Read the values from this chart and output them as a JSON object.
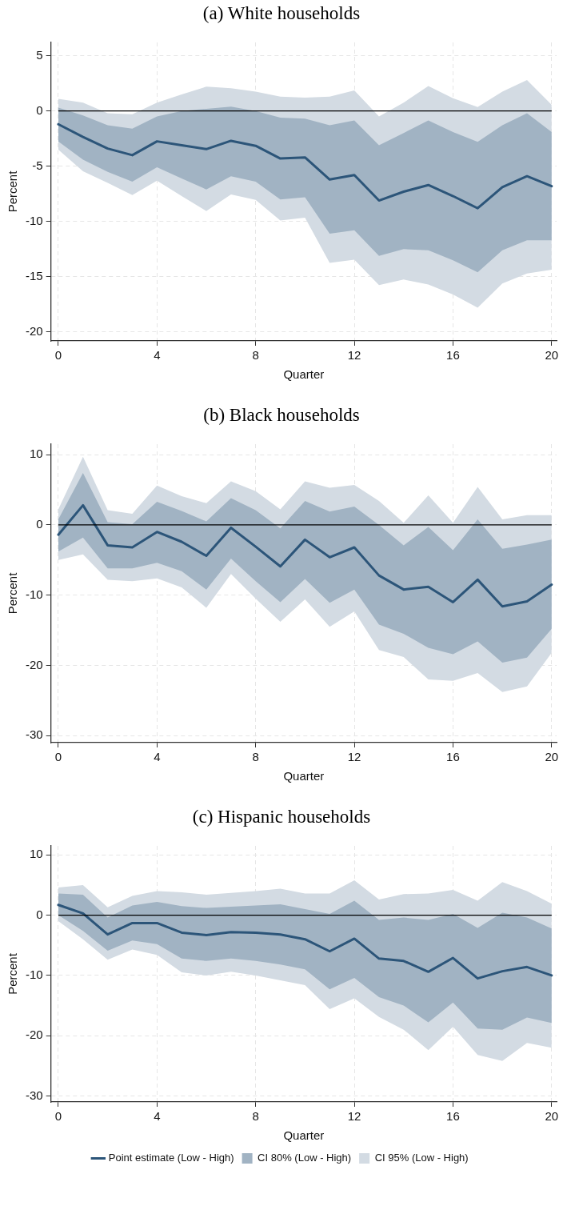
{
  "chart_data": [
    {
      "type": "line",
      "title": "(a) White households",
      "xlabel": "Quarter",
      "ylabel": "Percent",
      "x": [
        0,
        1,
        2,
        3,
        4,
        5,
        6,
        7,
        8,
        9,
        10,
        11,
        12,
        13,
        14,
        15,
        16,
        17,
        18,
        19,
        20
      ],
      "xlim": [
        -0.3,
        20.2
      ],
      "ylim": [
        -20.8,
        6.2
      ],
      "xticks": [
        0,
        4,
        8,
        12,
        16,
        20
      ],
      "yticks": [
        -20,
        -15,
        -10,
        -5,
        0,
        5
      ],
      "grid": true,
      "legend": false,
      "marker": "none",
      "line_style": "solid",
      "ref_lines": [
        {
          "axis": "y",
          "value": 0,
          "color": "#000000"
        }
      ],
      "series": [
        {
          "color": "#2c5579",
          "values": [
            -1.2,
            -2.35,
            -3.4,
            -4.0,
            -2.75,
            -3.1,
            -3.45,
            -2.7,
            -3.15,
            -4.3,
            -4.2,
            -6.2,
            -5.8,
            -8.1,
            -7.3,
            -6.7,
            -7.7,
            -8.8,
            -6.9,
            -5.9,
            -6.8
          ]
        },
        {
          "color": "#a1b3c3",
          "values": [
            null,
            null,
            null,
            null,
            null,
            null,
            null,
            null,
            null,
            null,
            null,
            null,
            null,
            null,
            null,
            null,
            null,
            null,
            null,
            null,
            null
          ],
          "lower": [
            -2.75,
            -4.4,
            -5.5,
            -6.4,
            -5.1,
            -6.1,
            -7.1,
            -5.9,
            -6.4,
            -8.0,
            -7.8,
            -11.1,
            -10.8,
            -13.1,
            -12.5,
            -12.6,
            -13.5,
            -14.6,
            -12.6,
            -11.7,
            -11.7
          ],
          "upper": [
            0.3,
            -0.4,
            -1.3,
            -1.6,
            -0.5,
            0,
            0.2,
            0.4,
            0,
            -0.6,
            -0.7,
            -1.3,
            -0.85,
            -3.1,
            -2.0,
            -0.85,
            -1.9,
            -2.8,
            -1.3,
            -0.2,
            -1.9
          ]
        },
        {
          "color": "#d3dbe3",
          "values": [
            null,
            null,
            null,
            null,
            null,
            null,
            null,
            null,
            null,
            null,
            null,
            null,
            null,
            null,
            null,
            null,
            null,
            null,
            null,
            null,
            null
          ],
          "lower": [
            -3.5,
            -5.45,
            -6.5,
            -7.6,
            -6.3,
            -7.7,
            -9.05,
            -7.55,
            -8.05,
            -9.9,
            -9.65,
            -13.75,
            -13.45,
            -15.75,
            -15.25,
            -15.7,
            -16.6,
            -17.8,
            -15.6,
            -14.7,
            -14.35
          ],
          "upper": [
            1.1,
            0.75,
            -0.2,
            -0.3,
            0.75,
            1.5,
            2.2,
            2.05,
            1.75,
            1.3,
            1.2,
            1.3,
            1.85,
            -0.5,
            0.75,
            2.25,
            1.15,
            0.35,
            1.75,
            2.8,
            0.55
          ]
        }
      ]
    },
    {
      "type": "line",
      "title": "(b) Black households",
      "xlabel": "Quarter",
      "ylabel": "Percent",
      "x": [
        0,
        1,
        2,
        3,
        4,
        5,
        6,
        7,
        8,
        9,
        10,
        11,
        12,
        13,
        14,
        15,
        16,
        17,
        18,
        19,
        20
      ],
      "xlim": [
        -0.3,
        20.2
      ],
      "ylim": [
        -31,
        11.5
      ],
      "xticks": [
        0,
        4,
        8,
        12,
        16,
        20
      ],
      "yticks": [
        -30,
        -20,
        -10,
        0,
        10
      ],
      "grid": true,
      "legend": false,
      "marker": "none",
      "line_style": "solid",
      "ref_lines": [
        {
          "axis": "y",
          "value": 0,
          "color": "#000000"
        }
      ],
      "series": [
        {
          "color": "#2c5579",
          "values": [
            -1.4,
            2.8,
            -2.9,
            -3.2,
            -1.0,
            -2.4,
            -4.4,
            -0.4,
            -3.1,
            -5.9,
            -2.1,
            -4.6,
            -3.2,
            -7.2,
            -9.2,
            -8.8,
            -11.0,
            -7.8,
            -11.6,
            -10.9,
            -8.5
          ]
        },
        {
          "color": "#a1b3c3",
          "values": [
            null,
            null,
            null,
            null,
            null,
            null,
            null,
            null,
            null,
            null,
            null,
            null,
            null,
            null,
            null,
            null,
            null,
            null,
            null,
            null,
            null
          ],
          "lower": [
            -3.8,
            -1.8,
            -6.2,
            -6.2,
            -5.4,
            -6.6,
            -9.2,
            -4.8,
            -8.0,
            -11.0,
            -7.7,
            -11.1,
            -9.2,
            -14.2,
            -15.5,
            -17.5,
            -18.4,
            -16.6,
            -19.6,
            -18.9,
            -14.8
          ],
          "upper": [
            0.8,
            7.4,
            0.4,
            0.1,
            3.3,
            2.0,
            0.5,
            3.8,
            2.1,
            -0.5,
            3.4,
            1.9,
            2.6,
            0,
            -2.9,
            -0.3,
            -3.6,
            0.8,
            -3.4,
            -2.8,
            -2.1
          ]
        },
        {
          "color": "#d3dbe3",
          "values": [
            null,
            null,
            null,
            null,
            null,
            null,
            null,
            null,
            null,
            null,
            null,
            null,
            null,
            null,
            null,
            null,
            null,
            null,
            null,
            null,
            null
          ],
          "lower": [
            -5.0,
            -4.2,
            -7.8,
            -8.0,
            -7.6,
            -8.9,
            -11.8,
            -7.0,
            -10.5,
            -13.8,
            -10.6,
            -14.5,
            -12.3,
            -17.8,
            -18.8,
            -22.0,
            -22.2,
            -21.1,
            -23.8,
            -23.0,
            -18.2
          ],
          "upper": [
            2.2,
            9.7,
            2.1,
            1.6,
            5.6,
            4.1,
            3.1,
            6.2,
            4.8,
            2.2,
            6.2,
            5.3,
            5.7,
            3.4,
            0.3,
            4.2,
            0.3,
            5.4,
            0.8,
            1.4,
            1.4
          ]
        }
      ]
    },
    {
      "type": "line",
      "title": "(c) Hispanic households",
      "xlabel": "Quarter",
      "ylabel": "Percent",
      "x": [
        0,
        1,
        2,
        3,
        4,
        5,
        6,
        7,
        8,
        9,
        10,
        11,
        12,
        13,
        14,
        15,
        16,
        17,
        18,
        19,
        20
      ],
      "xlim": [
        -0.3,
        20.2
      ],
      "ylim": [
        -31,
        11.5
      ],
      "xticks": [
        0,
        4,
        8,
        12,
        16,
        20
      ],
      "yticks": [
        -30,
        -20,
        -10,
        0,
        10
      ],
      "grid": true,
      "legend": "bottom",
      "marker": "none",
      "line_style": "solid",
      "ref_lines": [
        {
          "axis": "y",
          "value": 0,
          "color": "#000000"
        }
      ],
      "series": [
        {
          "name": "Point estimate (Low - High)",
          "color": "#2c5579",
          "values": [
            1.7,
            0.3,
            -3.2,
            -1.3,
            -1.3,
            -2.9,
            -3.3,
            -2.8,
            -2.9,
            -3.2,
            -4.0,
            -6.0,
            -3.9,
            -7.2,
            -7.6,
            -9.4,
            -7.1,
            -10.5,
            -9.3,
            -8.6,
            -10.0
          ]
        },
        {
          "name": "CI 80% (Low - High)",
          "color": "#a1b3c3",
          "values": [
            null,
            null,
            null,
            null,
            null,
            null,
            null,
            null,
            null,
            null,
            null,
            null,
            null,
            null,
            null,
            null,
            null,
            null,
            null,
            null,
            null
          ],
          "lower": [
            0,
            -2.6,
            -5.9,
            -4.2,
            -4.8,
            -7.2,
            -7.6,
            -7.2,
            -7.6,
            -8.2,
            -9.0,
            -12.3,
            -10.4,
            -13.6,
            -15.0,
            -17.8,
            -14.5,
            -18.8,
            -19.0,
            -17.0,
            -17.9
          ],
          "upper": [
            3.6,
            3.4,
            -0.4,
            1.6,
            2.2,
            1.5,
            1.2,
            1.4,
            1.6,
            1.8,
            1.0,
            0.2,
            2.4,
            -0.8,
            -0.4,
            -0.8,
            0.2,
            -2.1,
            0.4,
            -0.4,
            -2.2
          ]
        },
        {
          "name": "CI 95% (Low - High)",
          "color": "#d3dbe3",
          "values": [
            null,
            null,
            null,
            null,
            null,
            null,
            null,
            null,
            null,
            null,
            null,
            null,
            null,
            null,
            null,
            null,
            null,
            null,
            null,
            null,
            null
          ],
          "lower": [
            -1.0,
            -4.0,
            -7.4,
            -5.7,
            -6.6,
            -9.5,
            -10.0,
            -9.4,
            -10.0,
            -10.8,
            -11.6,
            -15.6,
            -13.8,
            -16.9,
            -19.0,
            -22.4,
            -18.5,
            -23.2,
            -24.2,
            -21.2,
            -22.0
          ],
          "upper": [
            4.6,
            5.0,
            1.3,
            3.2,
            4.0,
            3.8,
            3.4,
            3.7,
            4.0,
            4.4,
            3.6,
            3.6,
            5.8,
            2.6,
            3.5,
            3.6,
            4.2,
            2.4,
            5.5,
            4.0,
            1.9
          ]
        }
      ]
    }
  ]
}
